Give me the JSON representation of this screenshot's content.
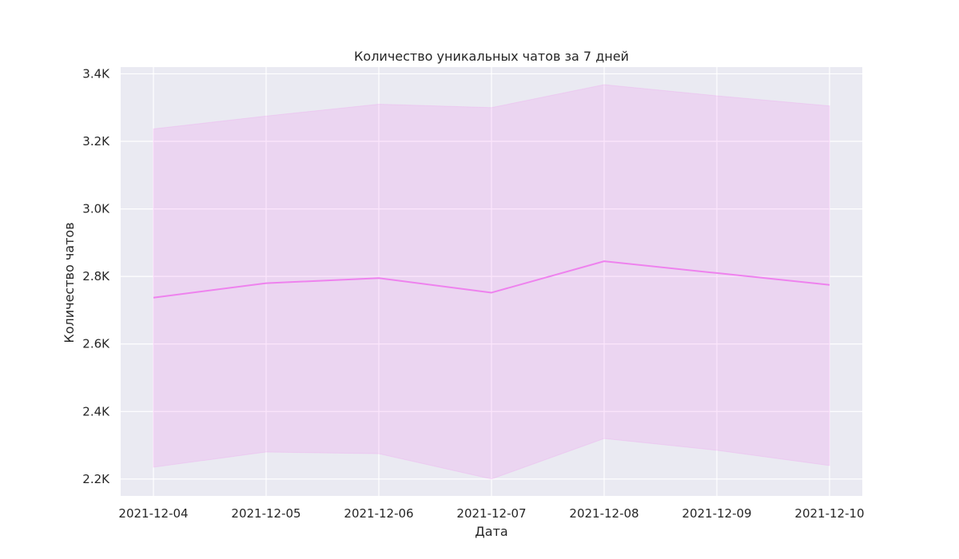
{
  "chart_data": {
    "type": "line",
    "title": "Количество уникальных чатов за 7 дней",
    "xlabel": "Дата",
    "ylabel": "Количество чатов",
    "x": [
      "2021-12-04",
      "2021-12-05",
      "2021-12-06",
      "2021-12-07",
      "2021-12-08",
      "2021-12-09",
      "2021-12-10"
    ],
    "series": [
      {
        "values": [
          2737,
          2780,
          2795,
          2752,
          2845,
          2810,
          2775
        ],
        "band_lower": [
          2235,
          2280,
          2275,
          2200,
          2320,
          2285,
          2240
        ],
        "band_upper": [
          3237,
          3275,
          3310,
          3300,
          3368,
          3335,
          3305
        ],
        "color": "#ee82ee"
      }
    ],
    "yticks": [
      2200,
      2400,
      2600,
      2800,
      3000,
      3200,
      3400
    ],
    "ytick_labels": [
      "2.2K",
      "2.4K",
      "2.6K",
      "2.8K",
      "3.0K",
      "3.2K",
      "3.4K"
    ],
    "ylim": [
      2150,
      3420
    ],
    "grid": true,
    "background_color": "#eaeaf2",
    "band_color": "#ee82ee"
  }
}
